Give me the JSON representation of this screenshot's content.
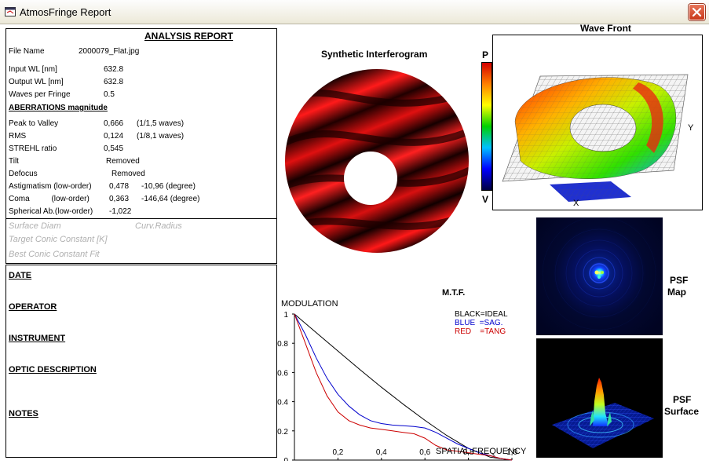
{
  "window": {
    "title": "AtmosFringe  Report"
  },
  "report": {
    "heading": "ANALYSIS  REPORT",
    "file_name_label": "File Name",
    "file_name": "2000079_Flat.jpg",
    "input_wl_label": "Input  WL [nm]",
    "input_wl": "632.8",
    "output_wl_label": "Output WL [nm]",
    "output_wl": "632.8",
    "waves_label": "Waves per Fringe",
    "waves": "0.5",
    "aberrations_heading": "ABERRATIONS magnitude",
    "ptv_label": "Peak to Valley",
    "ptv": "0,666",
    "ptv_waves": "(1/1,5 waves)",
    "rms_label": "RMS",
    "rms": "0,124",
    "rms_waves": "(1/8,1 waves)",
    "strehl_label": "STREHL ratio",
    "strehl": "0,545",
    "tilt_label": "Tilt",
    "tilt": "Removed",
    "defocus_label": "Defocus",
    "defocus": "Removed",
    "astig_label": "Astigmatism  (low-order)",
    "astig": "0,478",
    "astig_deg": "-10,96  (degree)",
    "coma_label": "Coma          (low-order)",
    "coma": "0,363",
    "coma_deg": "-146,64  (degree)",
    "spherical_label": "Spherical Ab.(low-order)",
    "spherical": "-1,022",
    "surface_diam": "Surface Diam",
    "curv_radius": "Curv.Radius",
    "target_conic": "Target Conic Constant [K]",
    "best_conic": "Best Conic Constant Fit"
  },
  "info": {
    "date": "DATE",
    "operator": "OPERATOR",
    "instrument": "INSTRUMENT",
    "optic_description": "OPTIC DESCRIPTION",
    "notes": "NOTES"
  },
  "interferogram": {
    "title": "Synthetic Interferogram"
  },
  "wavefront": {
    "title": "Wave Front",
    "p_label": "P",
    "v_label": "V",
    "y_label": "Y",
    "x_label": "X"
  },
  "psf": {
    "map_label_1": "PSF",
    "map_label_2": "Map",
    "surface_label_1": "PSF",
    "surface_label_2": "Surface"
  },
  "chart_data": {
    "type": "line",
    "title": "M.T.F.",
    "ylabel": "MODULATION",
    "xlabel": "SPATIAL FREQUENCY",
    "xlim": [
      0,
      1
    ],
    "ylim": [
      0,
      1
    ],
    "x_ticks": [
      "0,2",
      "0,4",
      "0,6",
      "0,8",
      "1,0"
    ],
    "y_ticks": [
      "0",
      "0.2",
      "0.4",
      "0.6",
      "0.8",
      "1"
    ],
    "legend": [
      "BLACK=IDEAL",
      "BLUE  =SAG.",
      "RED    =TANG"
    ],
    "series": [
      {
        "name": "BLACK=IDEAL",
        "color": "#000000",
        "x": [
          0,
          0.1,
          0.2,
          0.3,
          0.4,
          0.5,
          0.6,
          0.7,
          0.8,
          0.9,
          1.0
        ],
        "y": [
          1.0,
          0.873,
          0.747,
          0.621,
          0.499,
          0.383,
          0.272,
          0.169,
          0.08,
          0.02,
          0.0
        ]
      },
      {
        "name": "BLUE  =SAG.",
        "color": "#0000cc",
        "x": [
          0,
          0.05,
          0.1,
          0.15,
          0.2,
          0.25,
          0.3,
          0.35,
          0.4,
          0.45,
          0.5,
          0.55,
          0.6,
          0.65,
          0.7,
          0.75,
          0.8,
          0.85,
          0.9,
          0.95,
          1.0
        ],
        "y": [
          1.0,
          0.86,
          0.7,
          0.56,
          0.45,
          0.37,
          0.31,
          0.27,
          0.25,
          0.24,
          0.235,
          0.23,
          0.22,
          0.19,
          0.15,
          0.11,
          0.08,
          0.05,
          0.03,
          0.01,
          0.0
        ]
      },
      {
        "name": "RED    =TANG",
        "color": "#cc0000",
        "x": [
          0,
          0.05,
          0.1,
          0.15,
          0.2,
          0.25,
          0.3,
          0.35,
          0.4,
          0.45,
          0.5,
          0.55,
          0.6,
          0.65,
          0.7,
          0.75,
          0.8,
          0.85,
          0.9,
          0.95,
          1.0
        ],
        "y": [
          1.0,
          0.8,
          0.6,
          0.44,
          0.33,
          0.27,
          0.24,
          0.22,
          0.21,
          0.2,
          0.19,
          0.18,
          0.15,
          0.1,
          0.07,
          0.06,
          0.05,
          0.04,
          0.03,
          0.01,
          0.0
        ]
      }
    ]
  }
}
